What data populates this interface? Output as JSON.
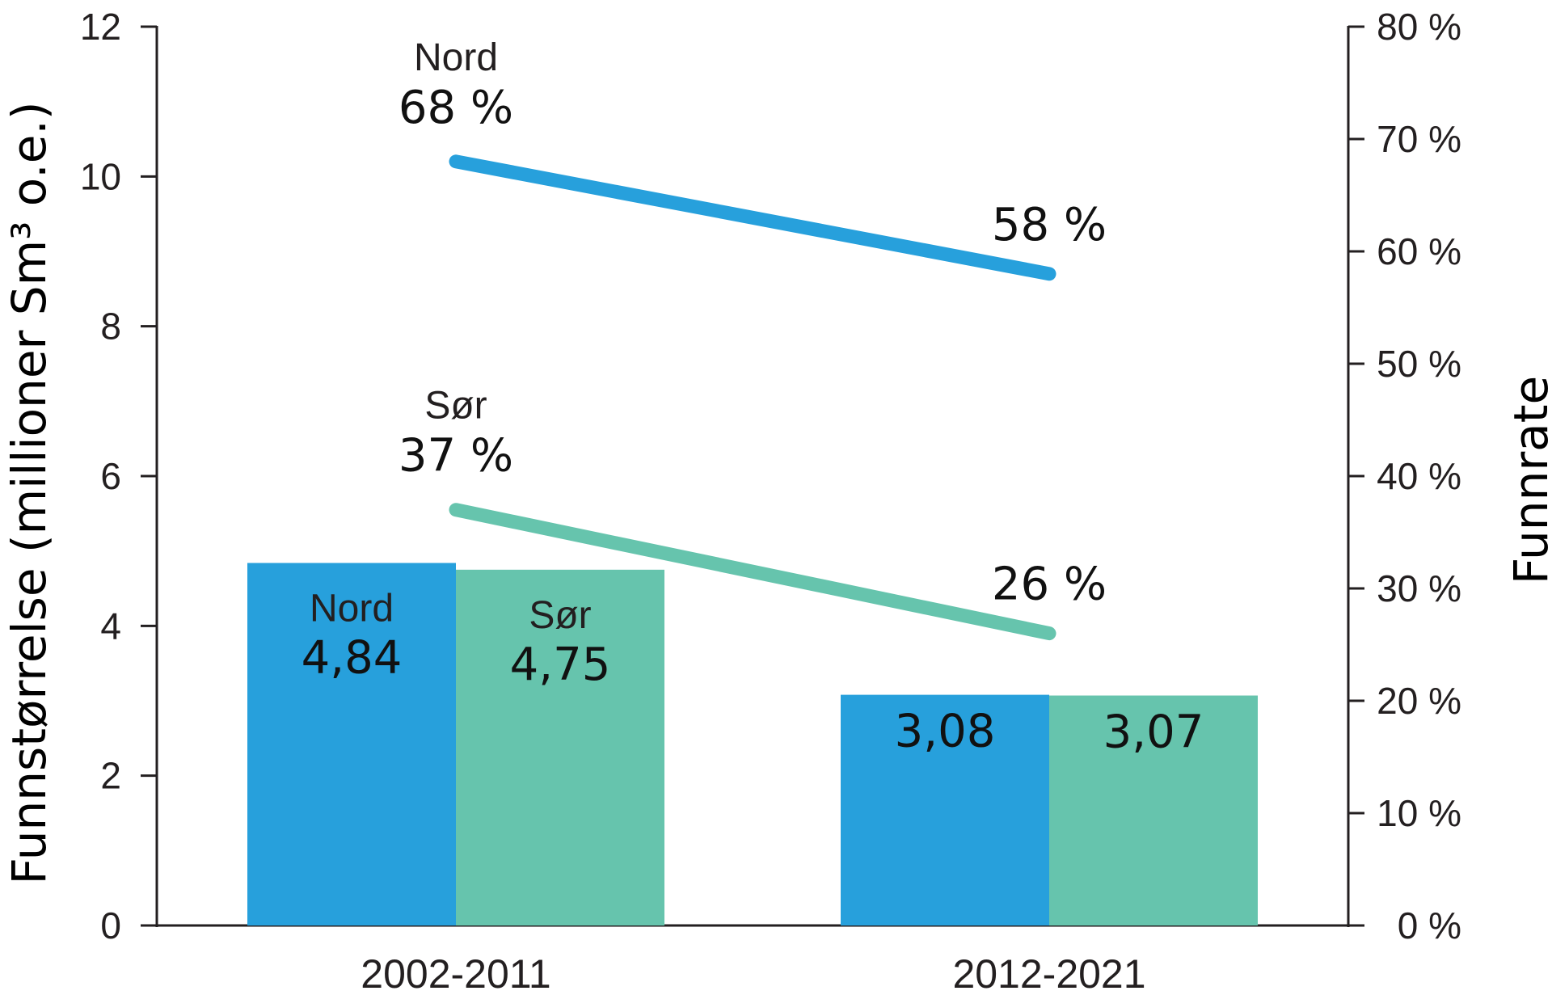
{
  "chart_data": {
    "type": "bar",
    "categories": [
      "2002-2011",
      "2012-2021"
    ],
    "ylabel": "Funnstørrelse (millioner Sm³ o.e.)",
    "ylabel_right": "Funnrate",
    "ylim": [
      0,
      12
    ],
    "yticks": [
      "0",
      "2",
      "4",
      "6",
      "8",
      "10",
      "12"
    ],
    "ylim_right": [
      0,
      80
    ],
    "yticks_right": [
      "0 %",
      "10 %",
      "20 %",
      "30 %",
      "40 %",
      "50 %",
      "60 %",
      "70 %",
      "80 %"
    ],
    "grid": false,
    "legend": "none",
    "bar_series": [
      {
        "name": "Nord",
        "color": "#27a0dc",
        "values": [
          4.84,
          3.08
        ],
        "value_labels": [
          "4,84",
          "3,08"
        ]
      },
      {
        "name": "Sør",
        "color": "#66c4ad",
        "values": [
          4.75,
          3.07
        ],
        "value_labels": [
          "4,75",
          "3,07"
        ]
      }
    ],
    "line_series": [
      {
        "name": "Nord",
        "axis": "right",
        "color": "#27a0dc",
        "values": [
          68,
          58
        ],
        "value_labels": [
          "68 %",
          "58 %"
        ]
      },
      {
        "name": "Sør",
        "axis": "right",
        "color": "#66c4ad",
        "values": [
          37,
          26
        ],
        "value_labels": [
          "37 %",
          "26 %"
        ]
      }
    ]
  }
}
